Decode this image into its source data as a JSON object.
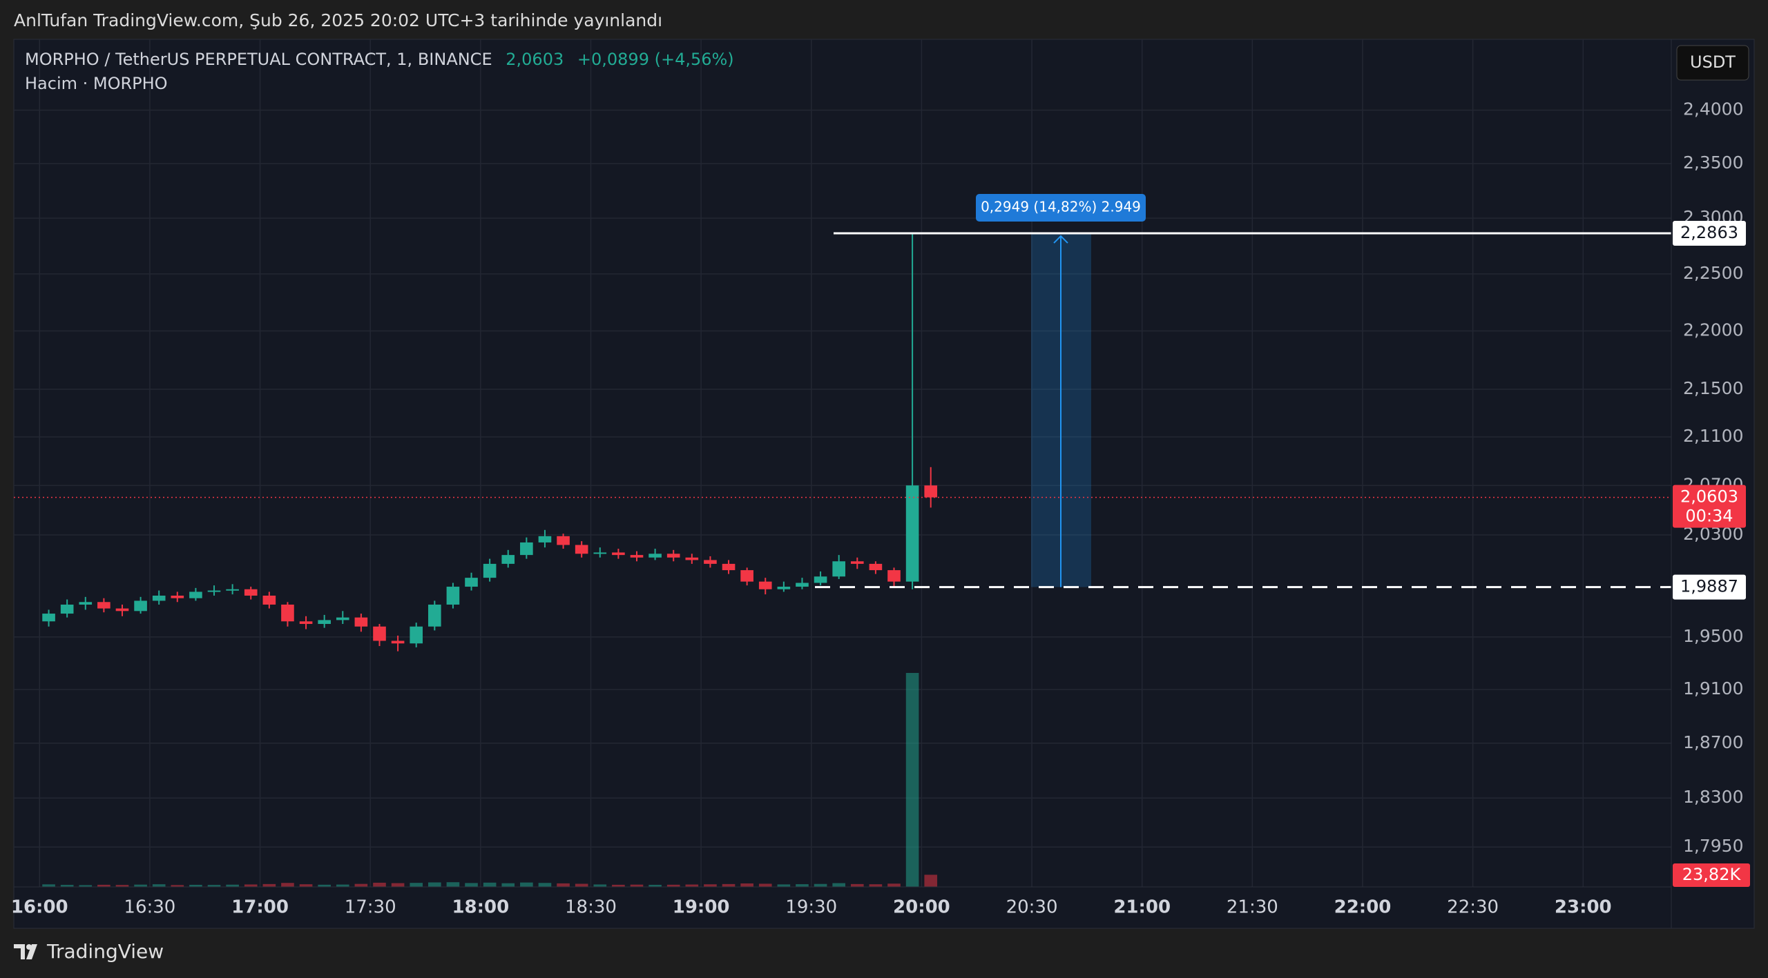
{
  "header": "AnlTufan TradingView.com, Şub 26, 2025 20:02 UTC+3 tarihinde yayınlandı",
  "footer": "TradingView",
  "chart_data": {
    "type": "candlestick",
    "title": "MORPHO / TetherUS PERPETUAL CONTRACT, 1, BINANCE",
    "last_price": {
      "value": 2.0603,
      "label": "2,0603"
    },
    "change": "+0,0899 (+4,56%)",
    "countdown": "00:34",
    "currency": "USDT",
    "log_scale": true,
    "grid": true,
    "up_color": "#22ab94",
    "down_color": "#f23645",
    "x": [
      "16:00",
      "16:05",
      "16:10",
      "16:15",
      "16:20",
      "16:25",
      "16:30",
      "16:35",
      "16:40",
      "16:45",
      "16:50",
      "16:55",
      "17:00",
      "17:05",
      "17:10",
      "17:15",
      "17:20",
      "17:25",
      "17:30",
      "17:35",
      "17:40",
      "17:45",
      "17:50",
      "17:55",
      "18:00",
      "18:05",
      "18:10",
      "18:15",
      "18:20",
      "18:25",
      "18:30",
      "18:35",
      "18:40",
      "18:45",
      "18:50",
      "18:55",
      "19:00",
      "19:05",
      "19:10",
      "19:15",
      "19:20",
      "19:25",
      "19:30",
      "19:35",
      "19:40",
      "19:45",
      "19:50",
      "19:55",
      "20:00"
    ],
    "open": [
      1.962,
      1.968,
      1.975,
      1.977,
      1.972,
      1.97,
      1.978,
      1.982,
      1.98,
      1.985,
      1.986,
      1.987,
      1.982,
      1.975,
      1.962,
      1.96,
      1.963,
      1.965,
      1.958,
      1.947,
      1.945,
      1.958,
      1.975,
      1.989,
      1.996,
      2.007,
      2.014,
      2.024,
      2.029,
      2.022,
      2.015,
      2.016,
      2.014,
      2.012,
      2.015,
      2.012,
      2.01,
      2.007,
      2.002,
      1.993,
      1.987,
      1.989,
      1.992,
      1.997,
      2.009,
      2.007,
      2.002,
      1.993,
      2.07
    ],
    "high": [
      1.971,
      1.979,
      1.981,
      1.98,
      1.975,
      1.981,
      1.986,
      1.985,
      1.988,
      1.99,
      1.991,
      1.989,
      1.985,
      1.977,
      1.966,
      1.967,
      1.97,
      1.968,
      1.96,
      1.951,
      1.961,
      1.978,
      1.992,
      2.0,
      2.011,
      2.018,
      2.028,
      2.034,
      2.031,
      2.025,
      2.02,
      2.019,
      2.017,
      2.019,
      2.018,
      2.015,
      2.013,
      2.01,
      2.004,
      1.996,
      1.993,
      1.996,
      2.001,
      2.014,
      2.012,
      2.009,
      2.004,
      2.2863,
      2.085
    ],
    "low": [
      1.958,
      1.965,
      1.971,
      1.969,
      1.966,
      1.968,
      1.975,
      1.977,
      1.978,
      1.982,
      1.983,
      1.979,
      1.972,
      1.958,
      1.956,
      1.957,
      1.96,
      1.954,
      1.943,
      1.939,
      1.942,
      1.955,
      1.972,
      1.986,
      1.993,
      2.004,
      2.011,
      2.02,
      2.019,
      2.012,
      2.012,
      2.011,
      2.009,
      2.01,
      2.009,
      2.007,
      2.004,
      1.999,
      1.99,
      1.983,
      1.985,
      1.987,
      1.99,
      1.995,
      2.003,
      1.999,
      1.989,
      1.987,
      2.052
    ],
    "close": [
      1.968,
      1.975,
      1.977,
      1.972,
      1.97,
      1.978,
      1.982,
      1.98,
      1.985,
      1.986,
      1.987,
      1.982,
      1.975,
      1.962,
      1.96,
      1.963,
      1.965,
      1.958,
      1.947,
      1.945,
      1.958,
      1.975,
      1.989,
      1.996,
      2.007,
      2.014,
      2.024,
      2.029,
      2.022,
      2.015,
      2.016,
      2.014,
      2.012,
      2.015,
      2.012,
      2.01,
      2.007,
      2.002,
      1.993,
      1.987,
      1.989,
      1.992,
      1.997,
      2.009,
      2.007,
      2.002,
      1.993,
      2.07,
      2.0603
    ],
    "volume": {
      "name": "Hacim · MORPHO",
      "values": [
        5000,
        4000,
        3500,
        4200,
        3800,
        4500,
        5200,
        3600,
        4100,
        3900,
        4400,
        4800,
        5600,
        7800,
        5200,
        4300,
        4600,
        5900,
        8200,
        7400,
        7900,
        8800,
        9200,
        7600,
        8400,
        7200,
        8600,
        7800,
        6900,
        6100,
        4800,
        4200,
        4500,
        4100,
        4300,
        4700,
        5100,
        5600,
        6800,
        6200,
        4900,
        5300,
        5800,
        7400,
        5600,
        5200,
        6400,
        420000,
        23820
      ],
      "value_labels": [
        null,
        null,
        null,
        null,
        null,
        null,
        null,
        null,
        null,
        null,
        null,
        null,
        null,
        null,
        null,
        null,
        null,
        null,
        null,
        null,
        null,
        null,
        null,
        null,
        null,
        null,
        null,
        null,
        null,
        null,
        null,
        null,
        null,
        null,
        null,
        null,
        null,
        null,
        null,
        null,
        null,
        null,
        null,
        null,
        null,
        null,
        null,
        null,
        "23,82K"
      ]
    },
    "xlim": [
      "15:53",
      "23:24"
    ],
    "xticks": [
      "16:00",
      "16:30",
      "17:00",
      "17:30",
      "18:00",
      "18:30",
      "19:00",
      "19:30",
      "20:00",
      "20:30",
      "21:00",
      "21:30",
      "22:00",
      "22:30",
      "23:00"
    ],
    "ylim": [
      1.767,
      2.468
    ],
    "yticks": [
      {
        "value": 2.4,
        "label": "2,4000"
      },
      {
        "value": 2.35,
        "label": "2,3500"
      },
      {
        "value": 2.3,
        "label": "2,3000"
      },
      {
        "value": 2.25,
        "label": "2,2500"
      },
      {
        "value": 2.2,
        "label": "2,2000"
      },
      {
        "value": 2.15,
        "label": "2,1500"
      },
      {
        "value": 2.11,
        "label": "2,1100"
      },
      {
        "value": 2.07,
        "label": "2,0700"
      },
      {
        "value": 2.03,
        "label": "2,0300"
      },
      {
        "value": 1.95,
        "label": "1,9500"
      },
      {
        "value": 1.91,
        "label": "1,9100"
      },
      {
        "value": 1.87,
        "label": "1,8700"
      },
      {
        "value": 1.83,
        "label": "1,8300"
      },
      {
        "value": 1.795,
        "label": "1,7950"
      }
    ],
    "price_lines": [
      {
        "value": 2.2863,
        "label": "2,2863",
        "style": "solid"
      },
      {
        "value": 1.9887,
        "label": "1,9887",
        "style": "dashed"
      }
    ],
    "measure": {
      "label": "0,2949 (14,82%) 2.949"
    }
  }
}
